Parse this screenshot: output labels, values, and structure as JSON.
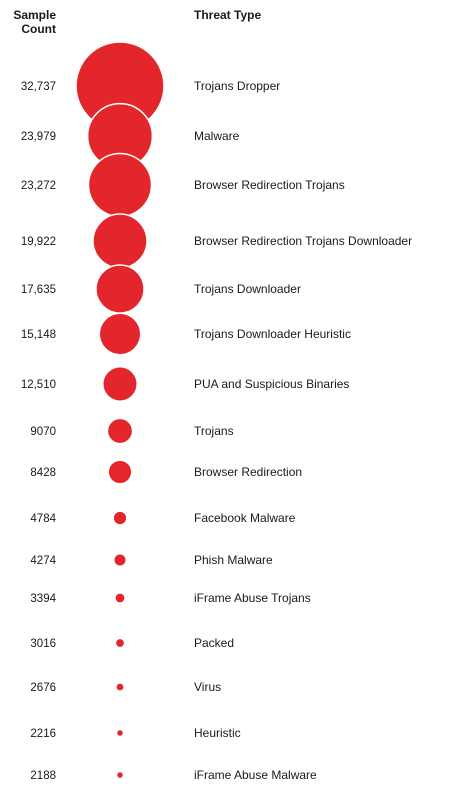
{
  "headers": {
    "count_line1": "Sample",
    "count_line2": "Count",
    "type": "Threat Type"
  },
  "colors": {
    "bubble": "#e3262b",
    "bubble_stroke": "#ffffff",
    "text": "#1a1a1a"
  },
  "chart_data": {
    "type": "bubble-list",
    "title": "",
    "rows": [
      {
        "count": 32737,
        "count_label": "32,737",
        "threat": "Trojans Dropper"
      },
      {
        "count": 23979,
        "count_label": "23,979",
        "threat": "Malware"
      },
      {
        "count": 23272,
        "count_label": "23,272",
        "threat": "Browser Redirection Trojans"
      },
      {
        "count": 19922,
        "count_label": "19,922",
        "threat": "Browser Redirection Trojans Downloader"
      },
      {
        "count": 17635,
        "count_label": "17,635",
        "threat": "Trojans Downloader"
      },
      {
        "count": 15148,
        "count_label": "15,148",
        "threat": "Trojans Downloader Heuristic"
      },
      {
        "count": 12510,
        "count_label": "12,510",
        "threat": "PUA and Suspicious Binaries"
      },
      {
        "count": 9070,
        "count_label": "9070",
        "threat": "Trojans"
      },
      {
        "count": 8428,
        "count_label": "8428",
        "threat": "Browser Redirection"
      },
      {
        "count": 4784,
        "count_label": "4784",
        "threat": "Facebook Malware"
      },
      {
        "count": 4274,
        "count_label": "4274",
        "threat": "Phish Malware"
      },
      {
        "count": 3394,
        "count_label": "3394",
        "threat": "iFrame Abuse Trojans"
      },
      {
        "count": 3016,
        "count_label": "3016",
        "threat": "Packed"
      },
      {
        "count": 2676,
        "count_label": "2676",
        "threat": "Virus"
      },
      {
        "count": 2216,
        "count_label": "2216",
        "threat": "Heuristic"
      },
      {
        "count": 2188,
        "count_label": "2188",
        "threat": "iFrame Abuse Malware"
      }
    ]
  }
}
